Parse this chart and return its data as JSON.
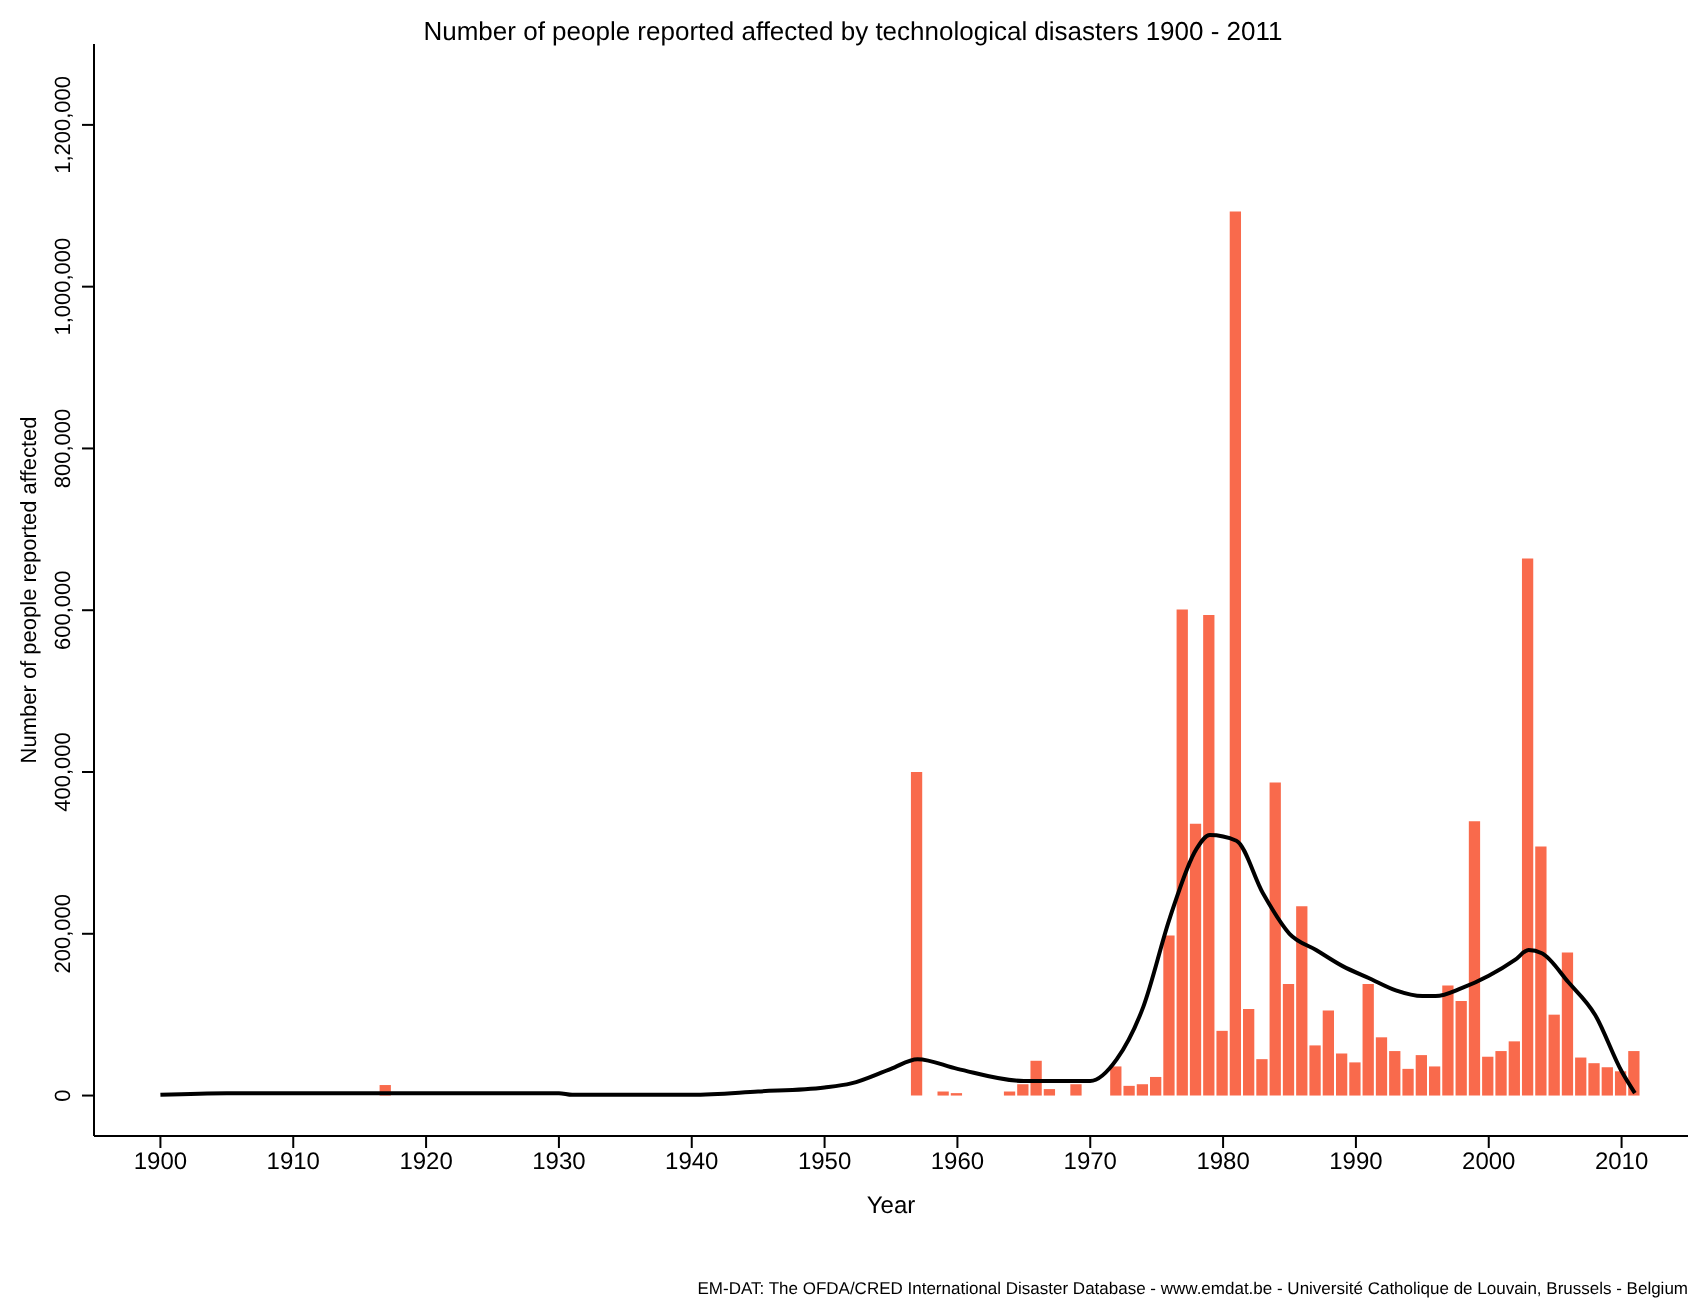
{
  "chart_data": {
    "type": "bar",
    "title": "Number of people reported affected by technological disasters 1900 - 2011",
    "xlabel": "Year",
    "ylabel": "Number of people reported affected",
    "annotations": [
      "EM-DAT: The OFDA/CRED International Disaster Database - www.emdat.be - Université Catholique  de Louvain, Brussels - Belgium"
    ],
    "series": [
      {
        "color": "#f96a4c",
        "x": [
          1917,
          1957,
          1959,
          1960,
          1964,
          1965,
          1966,
          1967,
          1969,
          1972,
          1973,
          1974,
          1975,
          1976,
          1977,
          1978,
          1979,
          1980,
          1981,
          1982,
          1983,
          1984,
          1985,
          1986,
          1987,
          1988,
          1989,
          1990,
          1991,
          1992,
          1993,
          1994,
          1995,
          1996,
          1997,
          1998,
          1999,
          2000,
          2001,
          2002,
          2003,
          2004,
          2005,
          2006,
          2007,
          2008,
          2009,
          2010,
          2011
        ],
        "values": [
          13000,
          400000,
          5000,
          3000,
          5000,
          14000,
          43000,
          8000,
          14000,
          36000,
          12000,
          14000,
          23000,
          198000,
          601000,
          336000,
          594000,
          80000,
          1093000,
          107000,
          45000,
          387000,
          138000,
          234000,
          62000,
          105000,
          52000,
          41000,
          138000,
          72000,
          55000,
          33000,
          50000,
          36000,
          136000,
          117000,
          339000,
          48000,
          55000,
          67000,
          664000,
          308000,
          100000,
          177000,
          47000,
          40000,
          35000,
          30000,
          55000
        ]
      },
      {
        "type": "line",
        "color": "#000000",
        "x": [
          1900,
          1905,
          1930,
          1931,
          1940,
          1945,
          1950,
          1952,
          1955,
          1957,
          1960,
          1965,
          1970,
          1972,
          1974,
          1976,
          1978,
          1979,
          1981,
          1983,
          1985,
          1987,
          1989,
          1991,
          1993,
          1995,
          1996,
          1998,
          2000,
          2002,
          2003,
          2004,
          2006,
          2008,
          2010,
          2011
        ],
        "values": [
          1000,
          3000,
          3000,
          1000,
          1000,
          5000,
          10000,
          15000,
          33000,
          45000,
          33000,
          18000,
          18000,
          45000,
          110000,
          220000,
          305000,
          322000,
          315000,
          250000,
          200000,
          180000,
          160000,
          145000,
          130000,
          123000,
          123000,
          133000,
          148000,
          168000,
          180000,
          176000,
          140000,
          100000,
          30000,
          3000
        ]
      }
    ],
    "xlim": [
      1895,
      2015
    ],
    "xticks": [
      1900,
      1910,
      1920,
      1930,
      1940,
      1950,
      1960,
      1970,
      1980,
      1990,
      2000,
      2010
    ],
    "ylim": [
      -50000,
      1300000
    ],
    "yticks": [
      0,
      {
        "value": 200000,
        "label": "200,000"
      },
      {
        "value": 400000,
        "label": "400,000"
      },
      {
        "value": 600000,
        "label": "600,000"
      },
      {
        "value": 800000,
        "label": "800,000"
      },
      {
        "value": 1000000,
        "label": "1,000,000"
      },
      {
        "value": 1200000,
        "label": "1,200,000"
      }
    ],
    "grid": false,
    "legend": false,
    "marker": "none",
    "line_style": "solid"
  }
}
